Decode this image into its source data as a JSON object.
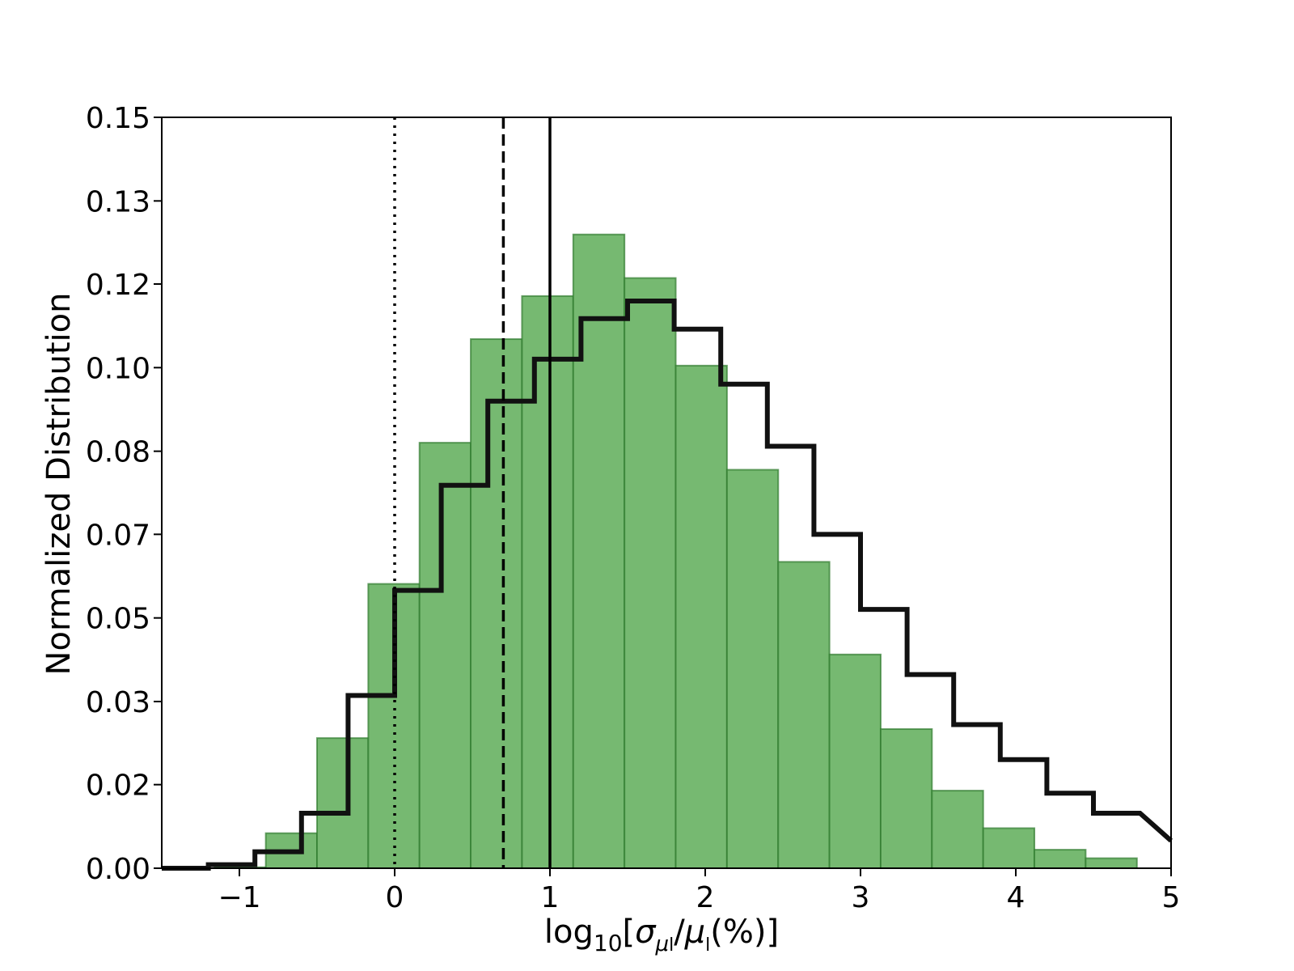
{
  "chart_data": {
    "type": "bar",
    "title": "",
    "ylabel": "Normalized Distribution",
    "xlabel_parts": {
      "prefix": "log",
      "sub1": "10",
      "bracket_open": "[",
      "sigma": "σ",
      "sub2": "μ",
      "sub2b": "l",
      "slash": "/",
      "mu": "μ",
      "sub3": "l",
      "tail": "(%)]"
    },
    "xlim": [
      -1.5,
      5.0
    ],
    "ylim": [
      0.0,
      0.15
    ],
    "x_ticks": [
      -1,
      0,
      1,
      2,
      3,
      4,
      5
    ],
    "x_tick_labels": [
      "−1",
      "0",
      "1",
      "2",
      "3",
      "4",
      "5"
    ],
    "y_ticks": [
      0.0,
      0.0167,
      0.0333,
      0.05,
      0.0667,
      0.0833,
      0.1,
      0.1167,
      0.1333,
      0.15
    ],
    "y_tick_labels": [
      "0.00",
      "0.02",
      "0.03",
      "0.05",
      "0.07",
      "0.08",
      "0.10",
      "0.12",
      "0.13",
      "0.15"
    ],
    "grid": false,
    "colors": {
      "bar_fill": "#76b971",
      "bar_edge": "#2f7a2e",
      "step_line": "#111111"
    },
    "series": [
      {
        "kind": "bar",
        "bin_edges": [
          -1.49,
          -1.16,
          -0.83,
          -0.5,
          -0.17,
          0.16,
          0.49,
          0.82,
          1.15,
          1.48,
          1.81,
          2.14,
          2.47,
          2.8,
          3.13,
          3.46,
          3.79,
          4.12,
          4.45,
          4.78
        ],
        "values": [
          0.0,
          0.0002,
          0.007,
          0.026,
          0.0568,
          0.085,
          0.1057,
          0.1143,
          0.1266,
          0.1179,
          0.1004,
          0.0796,
          0.0612,
          0.0427,
          0.0278,
          0.0155,
          0.008,
          0.0037,
          0.002
        ]
      },
      {
        "kind": "step",
        "bin_edges": [
          -1.2,
          -0.9,
          -0.6,
          -0.3,
          0.0,
          0.3,
          0.6,
          0.9,
          1.2,
          1.5,
          1.8,
          2.1,
          2.4,
          2.7,
          3.0,
          3.3,
          3.6,
          3.9,
          4.2,
          4.5,
          4.8
        ],
        "values": [
          0.0007,
          0.0033,
          0.011,
          0.0345,
          0.0555,
          0.0765,
          0.0933,
          0.1017,
          0.1098,
          0.1133,
          0.1077,
          0.0967,
          0.0843,
          0.0667,
          0.0517,
          0.0387,
          0.0287,
          0.0217,
          0.015,
          0.011
        ]
      }
    ],
    "vlines": [
      {
        "x": 0.0,
        "style": "dotted"
      },
      {
        "x": 0.7,
        "style": "dashed"
      },
      {
        "x": 1.0,
        "style": "solid"
      }
    ]
  }
}
